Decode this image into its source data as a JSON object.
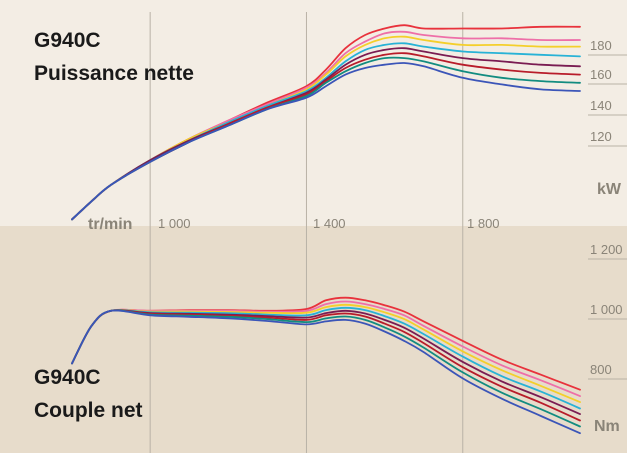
{
  "chart_data": [
    {
      "type": "line",
      "title_line1": "G940C",
      "title_line2": "Puissance nette",
      "x_unit_label": "tr/min",
      "y_unit_label": "kW",
      "x_tick_labels": [
        "1 000",
        "1 400",
        "1 800"
      ],
      "y_tick_labels": [
        "180",
        "160",
        "140",
        "120"
      ],
      "xlim": [
        800,
        2100
      ],
      "ylim": [
        60,
        190
      ],
      "grid": true,
      "x": [
        800,
        850,
        900,
        1000,
        1100,
        1200,
        1300,
        1400,
        1450,
        1500,
        1550,
        1600,
        1650,
        1700,
        1800,
        1900,
        2000,
        2100
      ],
      "series": [
        {
          "color": "#e8323c",
          "values": [
            64,
            75,
            85,
            100,
            113,
            124,
            135,
            145,
            155,
            168,
            176,
            180,
            182,
            180,
            180,
            180,
            181,
            181
          ]
        },
        {
          "color": "#ee6fa8",
          "values": [
            64,
            75,
            85,
            100,
            113,
            124,
            134,
            144,
            153,
            165,
            172,
            177,
            178,
            176,
            174,
            174,
            173,
            173
          ]
        },
        {
          "color": "#f4cf2b",
          "values": [
            64,
            75,
            85,
            100,
            113,
            123,
            133,
            143,
            152,
            163,
            170,
            174,
            175,
            173,
            170,
            170,
            169,
            169
          ]
        },
        {
          "color": "#28b2d6",
          "values": [
            64,
            75,
            85,
            100,
            112,
            123,
            133,
            142,
            150,
            160,
            167,
            170,
            171,
            169,
            166,
            165,
            164,
            163
          ]
        },
        {
          "color": "#7a1c52",
          "values": [
            64,
            75,
            85,
            100,
            112,
            122,
            132,
            141,
            149,
            158,
            164,
            167,
            168,
            166,
            162,
            160,
            158,
            157
          ]
        },
        {
          "color": "#b81c2a",
          "values": [
            64,
            75,
            85,
            99,
            111,
            122,
            132,
            140,
            148,
            156,
            161,
            164,
            165,
            163,
            158,
            155,
            153,
            152
          ]
        },
        {
          "color": "#128c80",
          "values": [
            64,
            75,
            85,
            99,
            111,
            121,
            131,
            139,
            147,
            154,
            159,
            162,
            162,
            160,
            154,
            150,
            148,
            147
          ]
        },
        {
          "color": "#3b55b8",
          "values": [
            64,
            75,
            85,
            99,
            111,
            121,
            131,
            138,
            145,
            152,
            156,
            158,
            159,
            157,
            150,
            146,
            143,
            142
          ]
        }
      ]
    },
    {
      "type": "line",
      "title_line1": "G940C",
      "title_line2": "Couple net",
      "y_unit_label": "Nm",
      "y_tick_labels": [
        "1 200",
        "1 000",
        "800"
      ],
      "xlim": [
        800,
        2100
      ],
      "ylim": [
        680,
        1250
      ],
      "grid": true,
      "x": [
        800,
        850,
        900,
        1000,
        1100,
        1200,
        1300,
        1400,
        1450,
        1500,
        1550,
        1600,
        1650,
        1700,
        1800,
        1900,
        2000,
        2100
      ],
      "series": [
        {
          "color": "#e8323c",
          "values": [
            900,
            1000,
            1040,
            1040,
            1042,
            1042,
            1040,
            1045,
            1068,
            1075,
            1068,
            1055,
            1038,
            1012,
            960,
            910,
            870,
            830
          ]
        },
        {
          "color": "#ee6fa8",
          "values": [
            900,
            1000,
            1040,
            1040,
            1040,
            1040,
            1038,
            1040,
            1058,
            1065,
            1058,
            1045,
            1028,
            1000,
            945,
            895,
            855,
            813
          ]
        },
        {
          "color": "#f4cf2b",
          "values": [
            900,
            1000,
            1040,
            1038,
            1038,
            1037,
            1035,
            1035,
            1050,
            1056,
            1050,
            1036,
            1018,
            990,
            932,
            882,
            840,
            797
          ]
        },
        {
          "color": "#28b2d6",
          "values": [
            900,
            1000,
            1040,
            1036,
            1035,
            1034,
            1030,
            1028,
            1042,
            1048,
            1042,
            1026,
            1006,
            978,
            918,
            866,
            825,
            780
          ]
        },
        {
          "color": "#7a1c52",
          "values": [
            900,
            1000,
            1040,
            1034,
            1032,
            1030,
            1026,
            1022,
            1034,
            1040,
            1033,
            1016,
            995,
            966,
            904,
            852,
            810,
            765
          ]
        },
        {
          "color": "#b81c2a",
          "values": [
            900,
            1000,
            1040,
            1032,
            1030,
            1027,
            1022,
            1016,
            1028,
            1033,
            1025,
            1006,
            984,
            954,
            890,
            838,
            795,
            748
          ]
        },
        {
          "color": "#128c80",
          "values": [
            900,
            1000,
            1040,
            1030,
            1027,
            1024,
            1018,
            1010,
            1020,
            1025,
            1016,
            996,
            972,
            942,
            876,
            822,
            778,
            732
          ]
        },
        {
          "color": "#3b55b8",
          "values": [
            900,
            1000,
            1040,
            1028,
            1024,
            1020,
            1013,
            1004,
            1012,
            1016,
            1006,
            985,
            960,
            930,
            860,
            806,
            760,
            714
          ]
        }
      ]
    }
  ],
  "colors": {
    "background_top": "#f3ede4",
    "background_bottom": "#e7dccb",
    "grid": "#b9b2a6",
    "tick_text": "#8a8478",
    "title_text": "#1a1a1a"
  }
}
